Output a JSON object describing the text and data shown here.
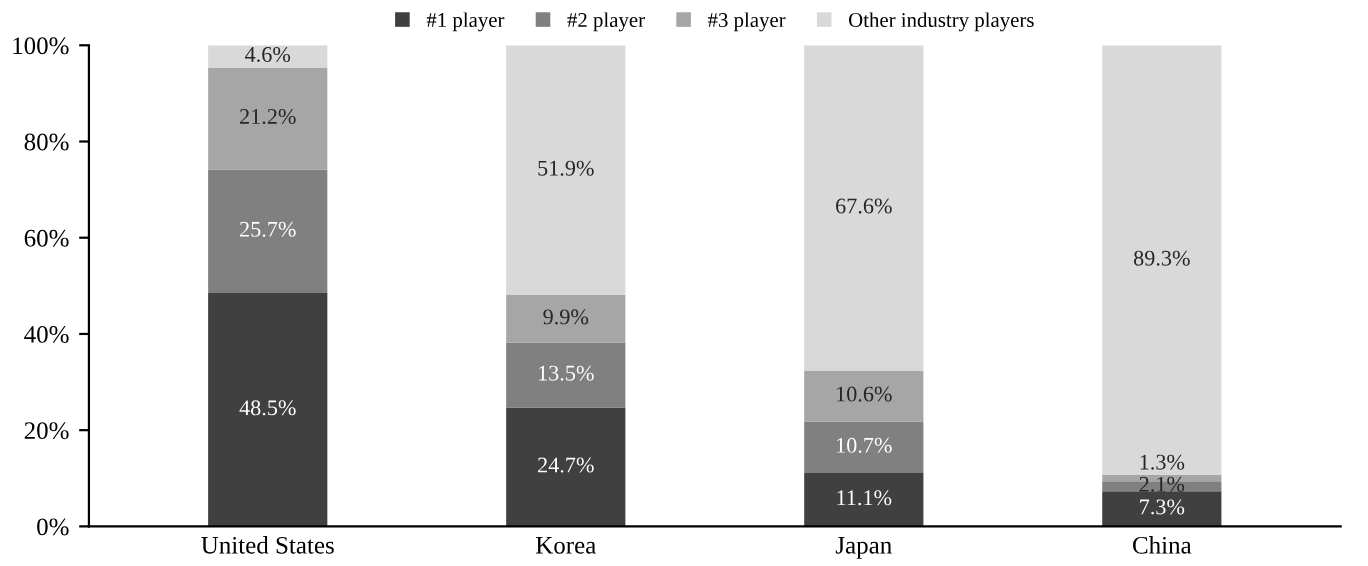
{
  "chart_data": {
    "type": "bar",
    "stacked": true,
    "categories": [
      "United States",
      "Korea",
      "Japan",
      "China"
    ],
    "series": [
      {
        "name": "#1 player",
        "color": "#404040",
        "values": [
          48.5,
          24.7,
          11.1,
          7.3
        ],
        "value_labels": [
          "48.5%",
          "24.7%",
          "11.1%",
          "7.3%"
        ]
      },
      {
        "name": "#2 player",
        "color": "#808080",
        "values": [
          25.7,
          13.5,
          10.7,
          2.1
        ],
        "value_labels": [
          "25.7%",
          "13.5%",
          "10.7%",
          "2.1%"
        ]
      },
      {
        "name": "#3 player",
        "color": "#a6a6a6",
        "values": [
          21.2,
          9.9,
          10.6,
          1.3
        ],
        "value_labels": [
          "21.2%",
          "9.9%",
          "10.6%",
          "1.3%"
        ]
      },
      {
        "name": "Other industry players",
        "color": "#d9d9d9",
        "values": [
          4.6,
          51.9,
          67.6,
          89.3
        ],
        "value_labels": [
          "4.6%",
          "51.9%",
          "67.6%",
          "89.3%"
        ]
      }
    ],
    "ylim": [
      0,
      100
    ],
    "yticks": [
      {
        "value": 0,
        "label": "0%"
      },
      {
        "value": 20,
        "label": "20%"
      },
      {
        "value": 40,
        "label": "40%"
      },
      {
        "value": 60,
        "label": "60%"
      },
      {
        "value": 80,
        "label": "80%"
      },
      {
        "value": 100,
        "label": "100%"
      }
    ],
    "legend": "top",
    "grid": false
  }
}
